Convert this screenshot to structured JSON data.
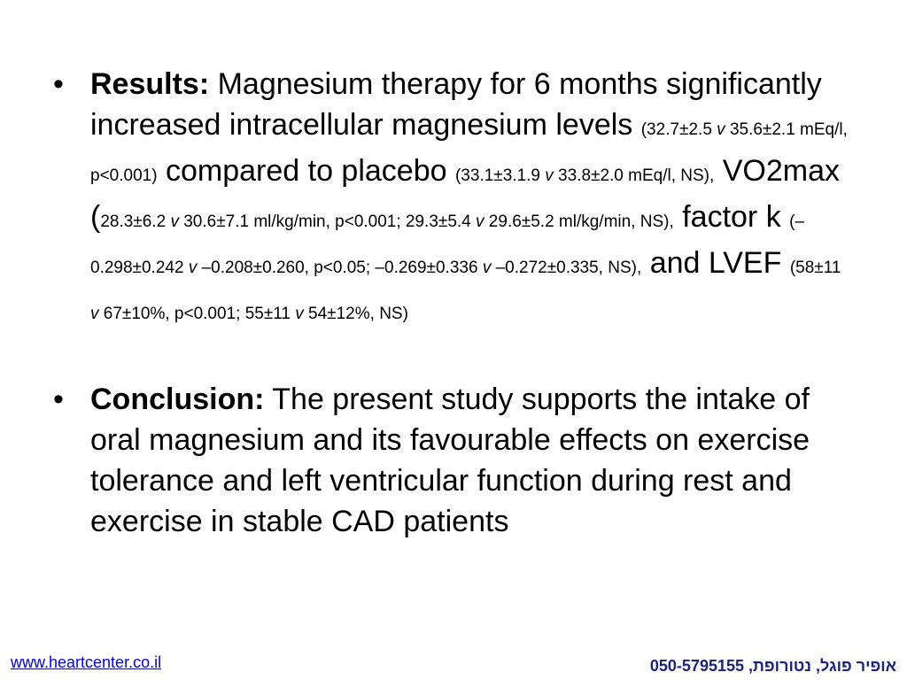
{
  "results": {
    "bullet": "•",
    "lead": "Results:",
    "text1": " Magnesium therapy for 6 months significantly increased intracellular magnesium levels ",
    "d1": "(32.7±2.5 ",
    "v1": "v",
    "d2": " 35.6±2.1 mEq/l, p<0.001)",
    "text2": " compared to placebo ",
    "d3": "(33.1±3.1.9 ",
    "v2": "v",
    "d4": " 33.8±2.0 mEq/l, NS),",
    "text3": " VO2max (",
    "d5": "28.3±6.2 ",
    "v3": "v",
    "d6": " 30.6±7.1 ml/kg/min, p<0.001; 29.3±5.4 ",
    "v4": "v",
    "d7": " 29.6±5.2 ml/kg/min, NS),",
    "text4": " factor k ",
    "d8": "(–0.298±0.242 ",
    "v5": "v",
    "d9": " –0.208±0.260, p<0.05; –0.269±0.336 ",
    "v6": "v",
    "d10": " –0.272±0.335, NS),",
    "text5": " and LVEF ",
    "d11": "(58±11 ",
    "v7": "v",
    "d12": " 67±10%, p<0.001; 55±11 ",
    "v8": "v",
    "d13": " 54±12%, NS)"
  },
  "conclusion": {
    "bullet": "•",
    "lead": "Conclusion:",
    "text": " The present study supports the intake of oral magnesium and its favourable effects on exercise tolerance and left ventricular function during rest and exercise in stable CAD patients"
  },
  "footer": {
    "website": "www.heartcenter.co.il",
    "contact": "050-5795155 ,אופיר פוגל, נטורופת"
  },
  "colors": {
    "link": "#0000ee",
    "contact": "#1a237e"
  }
}
